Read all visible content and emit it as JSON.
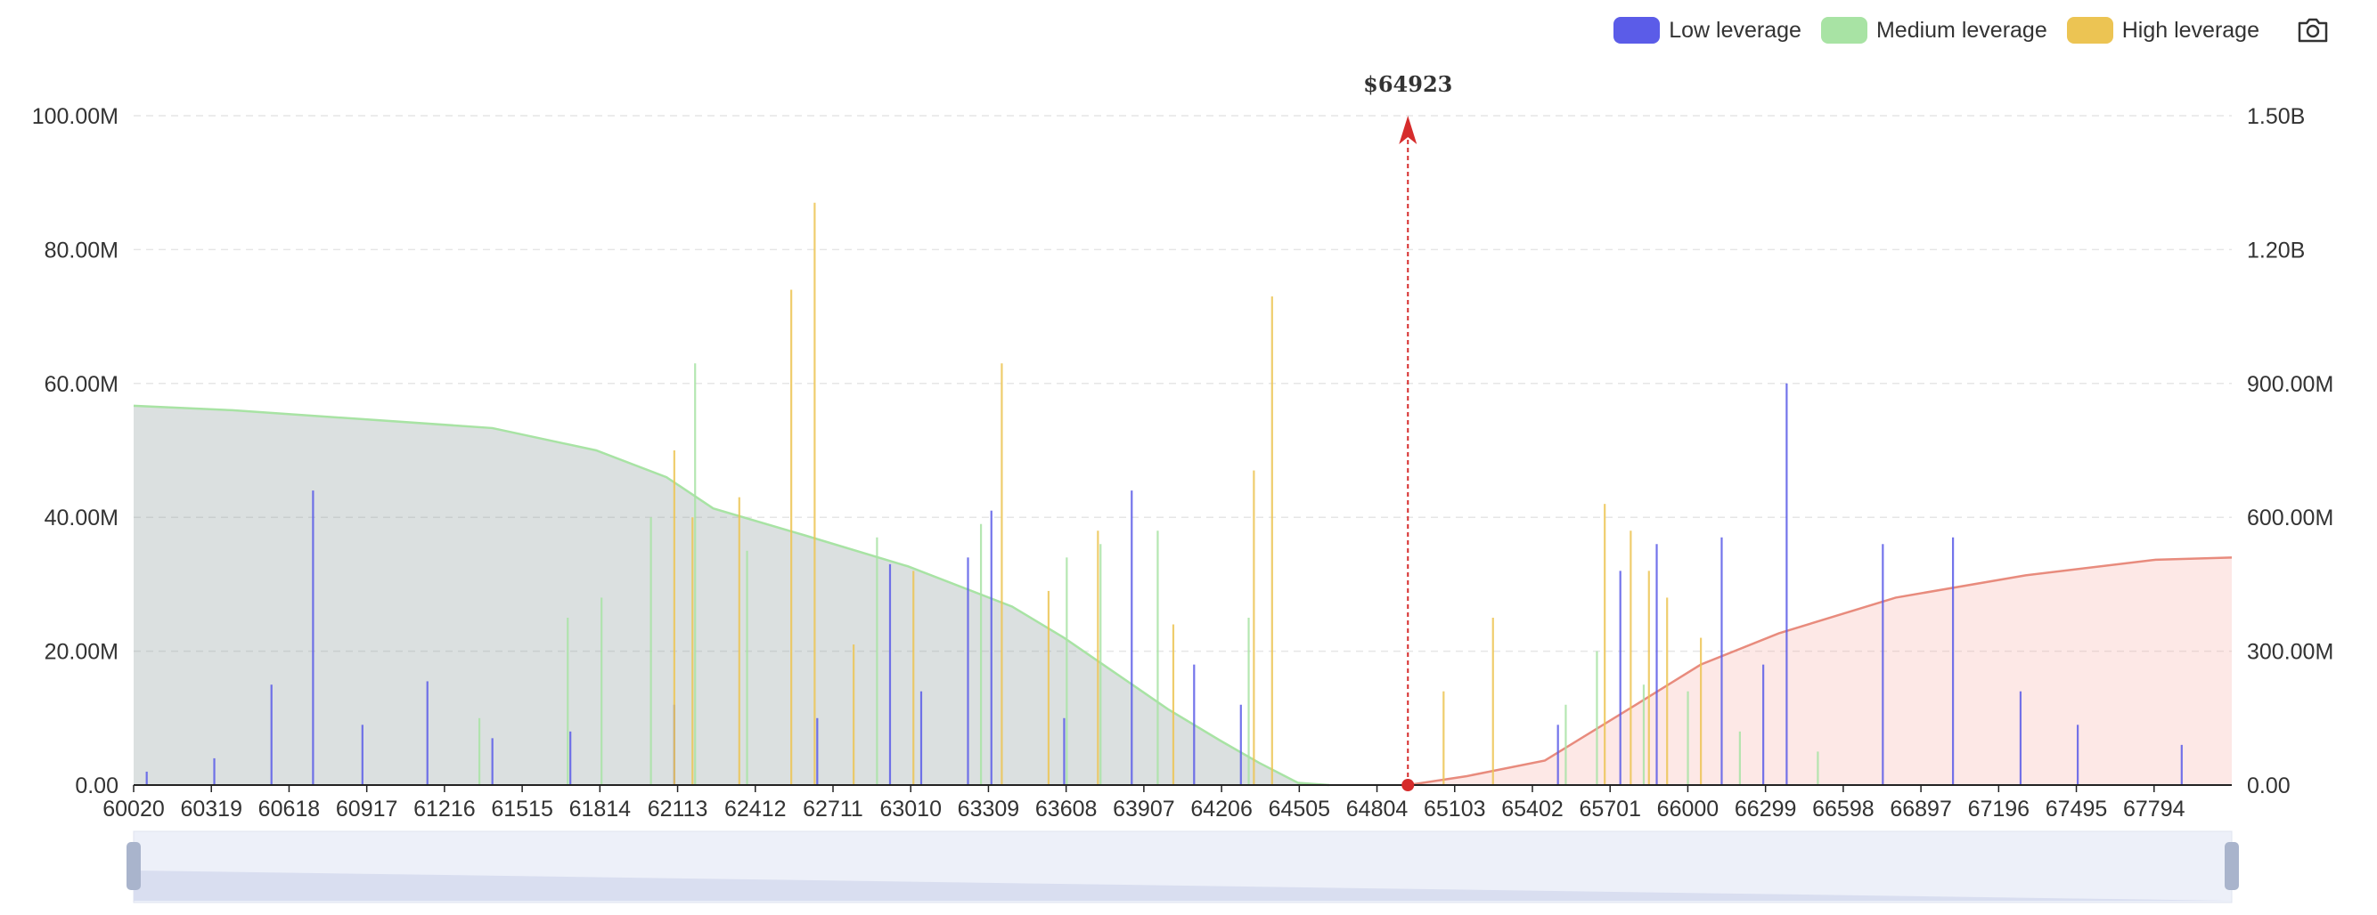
{
  "toolbar": {
    "legend": [
      {
        "label": "Low leverage",
        "color": "#5b5ce8"
      },
      {
        "label": "Medium leverage",
        "color": "#a8e3a4"
      },
      {
        "label": "High leverage",
        "color": "#ecc453"
      }
    ],
    "screenshot_icon": "camera-icon"
  },
  "chart_data": {
    "type": "bar",
    "current_price_label": "$64923",
    "current_price": 64923,
    "xlim": [
      60020,
      68093
    ],
    "x_ticks": [
      "60020",
      "60319",
      "60618",
      "60917",
      "61216",
      "61515",
      "61814",
      "62113",
      "62412",
      "62711",
      "63010",
      "63309",
      "63608",
      "63907",
      "64206",
      "64505",
      "64804",
      "65103",
      "65402",
      "65701",
      "66000",
      "66299",
      "66598",
      "66897",
      "67196",
      "67495",
      "67794"
    ],
    "y_left": {
      "ticks": [
        "0.00",
        "20.00M",
        "40.00M",
        "60.00M",
        "80.00M",
        "100.00M"
      ],
      "ylim": [
        0,
        100000000
      ]
    },
    "y_right": {
      "ticks": [
        "0.00",
        "300.00M",
        "600.00M",
        "900.00M",
        "1.20B",
        "1.50B"
      ],
      "ylim": [
        0,
        1500000000
      ]
    },
    "series": [
      {
        "name": "Low leverage",
        "color": "#5b5ce8",
        "values": [
          [
            60070,
            2000000
          ],
          [
            60330,
            4000000
          ],
          [
            60550,
            15000000
          ],
          [
            60710,
            44000000
          ],
          [
            60900,
            9000000
          ],
          [
            61150,
            15500000
          ],
          [
            61400,
            7000000
          ],
          [
            61700,
            8000000
          ],
          [
            62100,
            12000000
          ],
          [
            62650,
            10000000
          ],
          [
            62930,
            33000000
          ],
          [
            63050,
            14000000
          ],
          [
            63230,
            34000000
          ],
          [
            63320,
            41000000
          ],
          [
            63600,
            10000000
          ],
          [
            63860,
            44000000
          ],
          [
            64100,
            18000000
          ],
          [
            64280,
            12000000
          ],
          [
            65500,
            9000000
          ],
          [
            65740,
            32000000
          ],
          [
            65880,
            36000000
          ],
          [
            66130,
            37000000
          ],
          [
            66290,
            18000000
          ],
          [
            66380,
            60000000
          ],
          [
            66750,
            36000000
          ],
          [
            67020,
            37000000
          ],
          [
            67280,
            14000000
          ],
          [
            67500,
            9000000
          ],
          [
            67900,
            6000000
          ]
        ]
      },
      {
        "name": "Medium leverage",
        "color": "#a8e3a4",
        "values": [
          [
            61350,
            10000000
          ],
          [
            61690,
            25000000
          ],
          [
            61820,
            28000000
          ],
          [
            62010,
            40000000
          ],
          [
            62180,
            63000000
          ],
          [
            62380,
            35000000
          ],
          [
            62880,
            37000000
          ],
          [
            63280,
            39000000
          ],
          [
            63610,
            34000000
          ],
          [
            63740,
            36000000
          ],
          [
            63960,
            38000000
          ],
          [
            64310,
            25000000
          ],
          [
            65530,
            12000000
          ],
          [
            65650,
            20000000
          ],
          [
            65830,
            15000000
          ],
          [
            66000,
            14000000
          ],
          [
            66200,
            8000000
          ],
          [
            66500,
            5000000
          ]
        ]
      },
      {
        "name": "High leverage",
        "color": "#ecc453",
        "values": [
          [
            62100,
            50000000
          ],
          [
            62170,
            40000000
          ],
          [
            62350,
            43000000
          ],
          [
            62550,
            74000000
          ],
          [
            62640,
            87000000
          ],
          [
            62790,
            21000000
          ],
          [
            63020,
            32000000
          ],
          [
            63360,
            63000000
          ],
          [
            63540,
            29000000
          ],
          [
            63730,
            38000000
          ],
          [
            64020,
            24000000
          ],
          [
            64330,
            47000000
          ],
          [
            64400,
            73000000
          ],
          [
            65060,
            14000000
          ],
          [
            65250,
            25000000
          ],
          [
            65680,
            42000000
          ],
          [
            65780,
            38000000
          ],
          [
            65850,
            32000000
          ],
          [
            65920,
            28000000
          ],
          [
            66050,
            22000000
          ]
        ]
      }
    ],
    "cumulative_left": {
      "color": "#a8e3a4",
      "points": [
        [
          60020,
          850000000
        ],
        [
          60400,
          840000000
        ],
        [
          60900,
          820000000
        ],
        [
          61400,
          800000000
        ],
        [
          61800,
          750000000
        ],
        [
          62070,
          690000000
        ],
        [
          62250,
          620000000
        ],
        [
          62600,
          560000000
        ],
        [
          63000,
          490000000
        ],
        [
          63400,
          400000000
        ],
        [
          63600,
          330000000
        ],
        [
          63800,
          250000000
        ],
        [
          64000,
          170000000
        ],
        [
          64200,
          100000000
        ],
        [
          64350,
          50000000
        ],
        [
          64500,
          5000000
        ],
        [
          64620,
          0
        ]
      ]
    },
    "cumulative_right": {
      "color": "#e88b7d",
      "points": [
        [
          64923,
          0
        ],
        [
          65150,
          20000000
        ],
        [
          65450,
          55000000
        ],
        [
          65800,
          180000000
        ],
        [
          66050,
          270000000
        ],
        [
          66350,
          340000000
        ],
        [
          66800,
          420000000
        ],
        [
          67300,
          470000000
        ],
        [
          67800,
          505000000
        ],
        [
          68093,
          510000000
        ]
      ]
    }
  }
}
